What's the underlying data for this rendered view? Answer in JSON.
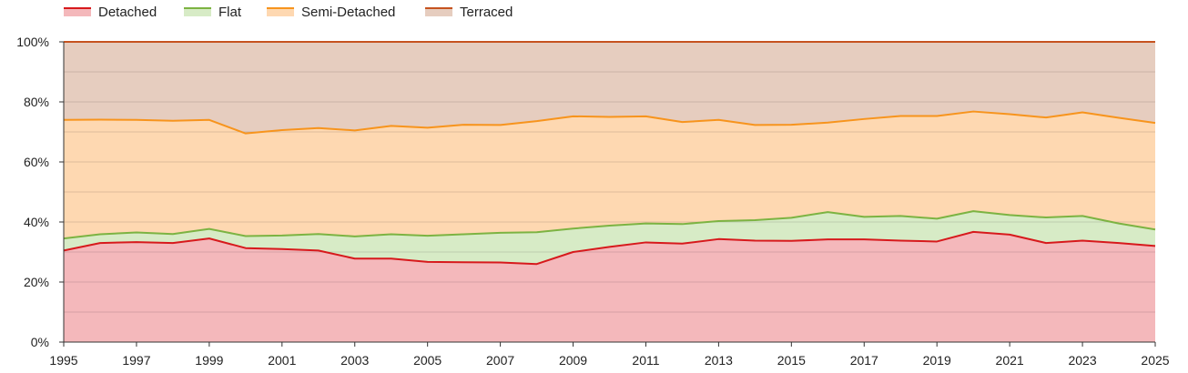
{
  "chart_data": {
    "type": "area",
    "stacked": true,
    "percent": true,
    "x": [
      1995,
      1996,
      1997,
      1998,
      1999,
      2000,
      2001,
      2002,
      2003,
      2004,
      2005,
      2006,
      2007,
      2008,
      2009,
      2010,
      2011,
      2012,
      2013,
      2014,
      2015,
      2016,
      2017,
      2018,
      2019,
      2020,
      2021,
      2022,
      2023,
      2024,
      2025
    ],
    "x_tick_labels": [
      "1995",
      "1997",
      "1999",
      "2001",
      "2003",
      "2005",
      "2007",
      "2009",
      "2011",
      "2013",
      "2015",
      "2017",
      "2019",
      "2021",
      "2023",
      "2025"
    ],
    "y_tick_labels": [
      "0%",
      "20%",
      "40%",
      "60%",
      "80%",
      "100%"
    ],
    "ylim": [
      0,
      100
    ],
    "grid": true,
    "legend_position": "top-left",
    "series": [
      {
        "name": "Detached",
        "line_color": "#d7191c",
        "fill_color": "#f4b8bb",
        "values": [
          30.5,
          33,
          33.3,
          33,
          34.5,
          31.3,
          31,
          30.5,
          27.8,
          27.8,
          26.7,
          26.6,
          26.5,
          26,
          30,
          31.7,
          33.2,
          32.8,
          34.3,
          33.8,
          33.7,
          34.2,
          34.2,
          33.8,
          33.5,
          36.7,
          35.8,
          33,
          33.8,
          33,
          32
        ]
      },
      {
        "name": "Flat",
        "line_color": "#7cb342",
        "fill_color": "#d7ebc6",
        "values": [
          4,
          2.9,
          3.2,
          3,
          3.2,
          4,
          4.5,
          5.5,
          7.4,
          8.1,
          8.7,
          9.3,
          9.9,
          10.6,
          7.8,
          7.1,
          6.3,
          6.5,
          6,
          6.8,
          7.7,
          9.1,
          7.5,
          8.2,
          7.6,
          6.9,
          6.5,
          8.5,
          8.2,
          6.5,
          5.5
        ]
      },
      {
        "name": "Semi-Detached",
        "line_color": "#f7941d",
        "fill_color": "#fed8b1",
        "values": [
          39.5,
          38.2,
          37.5,
          37.7,
          36.3,
          34.2,
          35.1,
          35.3,
          35.3,
          36.1,
          36,
          36.5,
          35.9,
          37,
          37.4,
          36.2,
          35.7,
          34,
          33.7,
          31.7,
          31,
          29.8,
          32.6,
          33.3,
          34.2,
          33.2,
          33.6,
          33.3,
          34.5,
          35.2,
          35.5
        ]
      },
      {
        "name": "Terraced",
        "line_color": "#c6531f",
        "fill_color": "#e6cdbf",
        "values": [
          26,
          25.9,
          26,
          26.3,
          26,
          30.5,
          29.4,
          28.7,
          29.5,
          28,
          28.6,
          27.6,
          27.7,
          26.4,
          24.8,
          25,
          24.8,
          26.7,
          26,
          27.7,
          27.6,
          26.9,
          25.7,
          24.7,
          24.7,
          23.2,
          24.1,
          25.2,
          23.5,
          25.3,
          27
        ]
      }
    ]
  }
}
